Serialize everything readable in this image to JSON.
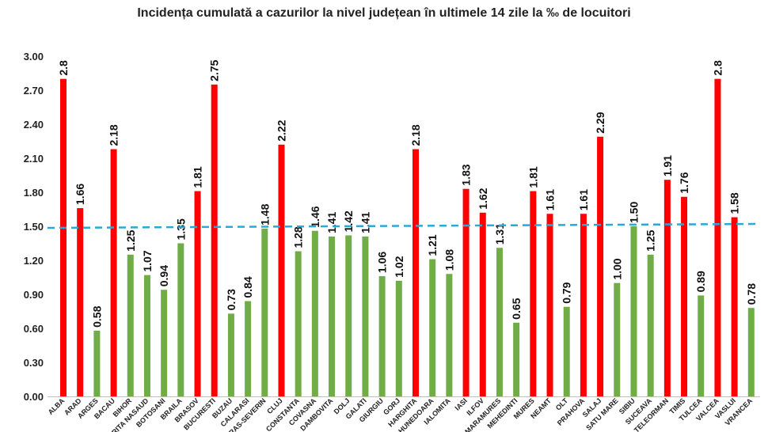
{
  "chart_data": {
    "type": "bar",
    "title": "Incidența cumulată a cazurilor la nivel județean în ultimele 14 zile la ‰ de locuitori",
    "xlabel": "",
    "ylabel": "",
    "ylim": [
      0,
      3.0
    ],
    "yticks": [
      "0.00",
      "0.30",
      "0.60",
      "0.90",
      "1.20",
      "1.50",
      "1.80",
      "2.10",
      "2.40",
      "2.70",
      "3.00"
    ],
    "threshold": 1.5,
    "threshold_color": "#2aa8d8",
    "colors": {
      "above": "#ff0000",
      "below": "#70ad47"
    },
    "grid": false,
    "legend": "none",
    "categories": [
      "ALBA",
      "ARAD",
      "ARGES",
      "BACAU",
      "BIHOR",
      "BISTRITA NASAUD",
      "BOTOSANI",
      "BRAILA",
      "BRASOV",
      "BUCURESTI",
      "BUZAU",
      "CALARASI",
      "CARAS-SEVERIN",
      "CLUJ",
      "CONSTANTA",
      "COVASNA",
      "DAMBOVITA",
      "DOLJ",
      "GALATI",
      "GIURGIU",
      "GORJ",
      "HARGHITA",
      "HUNEDOARA",
      "IALOMITA",
      "IASI",
      "ILFOV",
      "MARAMURES",
      "MEHEDINTI",
      "MURES",
      "NEAMT",
      "OLT",
      "PRAHOVA",
      "SALAJ",
      "SATU MARE",
      "SIBIU",
      "SUCEAVA",
      "TELEORMAN",
      "TIMIS",
      "TULCEA",
      "VALCEA",
      "VASLUI",
      "VRANCEA"
    ],
    "values": [
      2.8,
      1.66,
      0.58,
      2.18,
      1.25,
      1.07,
      0.94,
      1.35,
      1.81,
      2.75,
      0.73,
      0.84,
      1.48,
      2.22,
      1.28,
      1.46,
      1.41,
      1.42,
      1.41,
      1.06,
      1.02,
      2.18,
      1.21,
      1.08,
      1.83,
      1.62,
      1.31,
      0.65,
      1.81,
      1.61,
      0.79,
      1.61,
      2.29,
      1.0,
      1.5,
      1.25,
      1.91,
      1.76,
      0.89,
      2.8,
      1.58,
      0.78
    ],
    "value_labels": [
      "2.8",
      "1.66",
      "0.58",
      "2.18",
      "1.25",
      "1.07",
      "0.94",
      "1.35",
      "1.81",
      "2.75",
      "0.73",
      "0.84",
      "1.48",
      "2.22",
      "1.28",
      "1.46",
      "1.41",
      "1.42",
      "1.41",
      "1.06",
      "1.02",
      "2.18",
      "1.21",
      "1.08",
      "1.83",
      "1.62",
      "1.31",
      "0.65",
      "1.81",
      "1.61",
      "0.79",
      "1.61",
      "2.29",
      "1.00",
      "1.50",
      "1.25",
      "1.91",
      "1.76",
      "0.89",
      "2.8",
      "1.58",
      "0.78"
    ]
  }
}
